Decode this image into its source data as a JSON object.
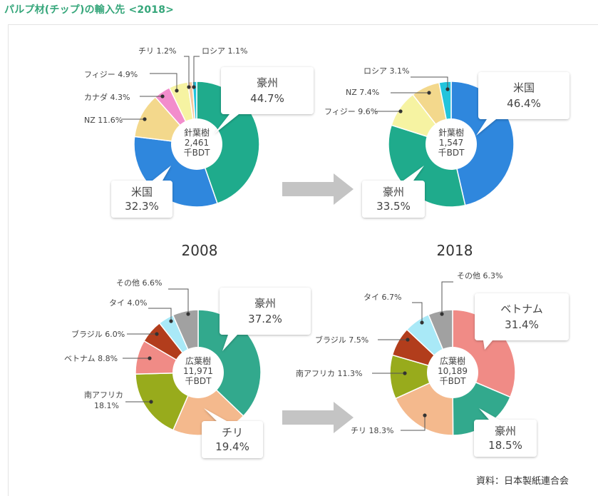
{
  "title": "パルプ材(チップ)の輸入先 <2018>",
  "source": "資料：日本製紙連合会",
  "year_labels": [
    "2008",
    "2018"
  ],
  "colors": {
    "title": "#35a67a",
    "arrow": "#c4c4c4"
  },
  "chart_data": [
    {
      "type": "pie",
      "year": "2008",
      "category": "針葉樹",
      "total": "2,461",
      "unit": "千BDT",
      "slices": [
        {
          "name": "豪州",
          "value": 44.7,
          "color": "#1fab8c"
        },
        {
          "name": "米国",
          "value": 32.3,
          "color": "#2f87dd"
        },
        {
          "name": "NZ",
          "value": 11.6,
          "color": "#f3d88c"
        },
        {
          "name": "カナダ",
          "value": 4.3,
          "color": "#f28dcc"
        },
        {
          "name": "フィジー",
          "value": 4.9,
          "color": "#f6f3a2"
        },
        {
          "name": "チリ",
          "value": 1.2,
          "color": "#f8c9a0"
        },
        {
          "name": "ロシア",
          "value": 1.1,
          "color": "#23c4dc"
        }
      ]
    },
    {
      "type": "pie",
      "year": "2018",
      "category": "針葉樹",
      "total": "1,547",
      "unit": "千BDT",
      "slices": [
        {
          "name": "米国",
          "value": 46.4,
          "color": "#2f87dd"
        },
        {
          "name": "豪州",
          "value": 33.5,
          "color": "#1fab8c"
        },
        {
          "name": "フィジー",
          "value": 9.6,
          "color": "#f6f3a2"
        },
        {
          "name": "NZ",
          "value": 7.4,
          "color": "#f3d88c"
        },
        {
          "name": "ロシア",
          "value": 3.1,
          "color": "#23c4dc"
        }
      ]
    },
    {
      "type": "pie",
      "year": "2008",
      "category": "広葉樹",
      "total": "11,971",
      "unit": "千BDT",
      "slices": [
        {
          "name": "豪州",
          "value": 37.2,
          "color": "#32a98d"
        },
        {
          "name": "チリ",
          "value": 19.4,
          "color": "#f4b98d"
        },
        {
          "name": "南アフリカ",
          "value": 18.1,
          "color": "#98ab1c"
        },
        {
          "name": "ベトナム",
          "value": 8.8,
          "color": "#f08b86"
        },
        {
          "name": "ブラジル",
          "value": 6.0,
          "color": "#b23d1c"
        },
        {
          "name": "タイ",
          "value": 4.0,
          "color": "#a9e9f7"
        },
        {
          "name": "その他",
          "value": 6.6,
          "color": "#a1a1a1"
        }
      ]
    },
    {
      "type": "pie",
      "year": "2018",
      "category": "広葉樹",
      "total": "10,189",
      "unit": "千BDT",
      "slices": [
        {
          "name": "ベトナム",
          "value": 31.4,
          "color": "#f08b86"
        },
        {
          "name": "豪州",
          "value": 18.5,
          "color": "#32a98d"
        },
        {
          "name": "チリ",
          "value": 18.3,
          "color": "#f4b98d"
        },
        {
          "name": "南アフリカ",
          "value": 11.3,
          "color": "#98ab1c"
        },
        {
          "name": "ブラジル",
          "value": 7.5,
          "color": "#b23d1c"
        },
        {
          "name": "タイ",
          "value": 6.7,
          "color": "#a9e9f7"
        },
        {
          "name": "その他",
          "value": 6.3,
          "color": "#a1a1a1"
        }
      ]
    }
  ]
}
